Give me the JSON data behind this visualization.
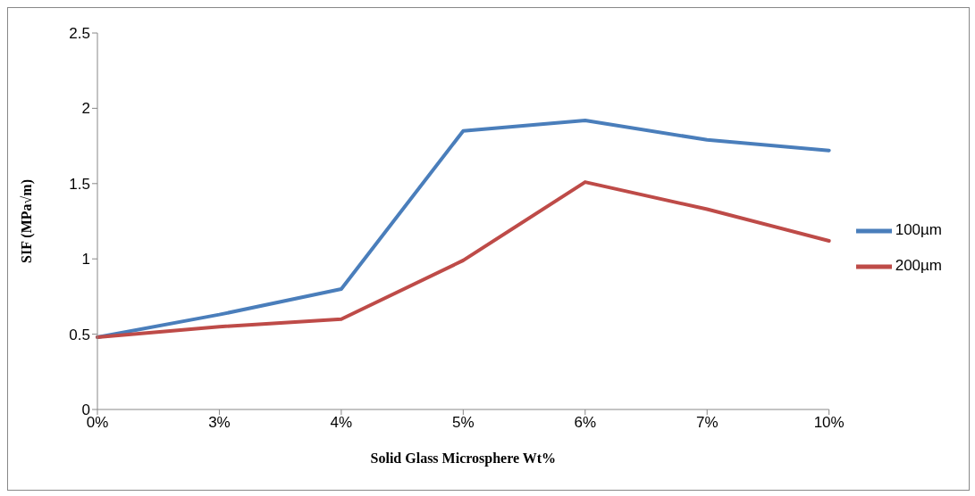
{
  "chart_data": {
    "type": "line",
    "xlabel": "Solid Glass Microsphere Wt%",
    "ylabel": "SIF (MPa√m)",
    "categories": [
      "0%",
      "3%",
      "4%",
      "5%",
      "6%",
      "7%",
      "10%"
    ],
    "series": [
      {
        "name": "100µm",
        "color": "#4a7ebb",
        "values": [
          0.48,
          0.63,
          0.8,
          1.85,
          1.92,
          1.79,
          1.72
        ]
      },
      {
        "name": "200µm",
        "color": "#be4b48",
        "values": [
          0.48,
          0.55,
          0.6,
          0.99,
          1.51,
          1.33,
          1.12
        ]
      }
    ],
    "ylim": [
      0,
      2.5
    ],
    "yticks": [
      0,
      0.5,
      1,
      1.5,
      2,
      2.5
    ],
    "grid": false,
    "legend": "right",
    "marker": "none",
    "line_style": "solid"
  }
}
